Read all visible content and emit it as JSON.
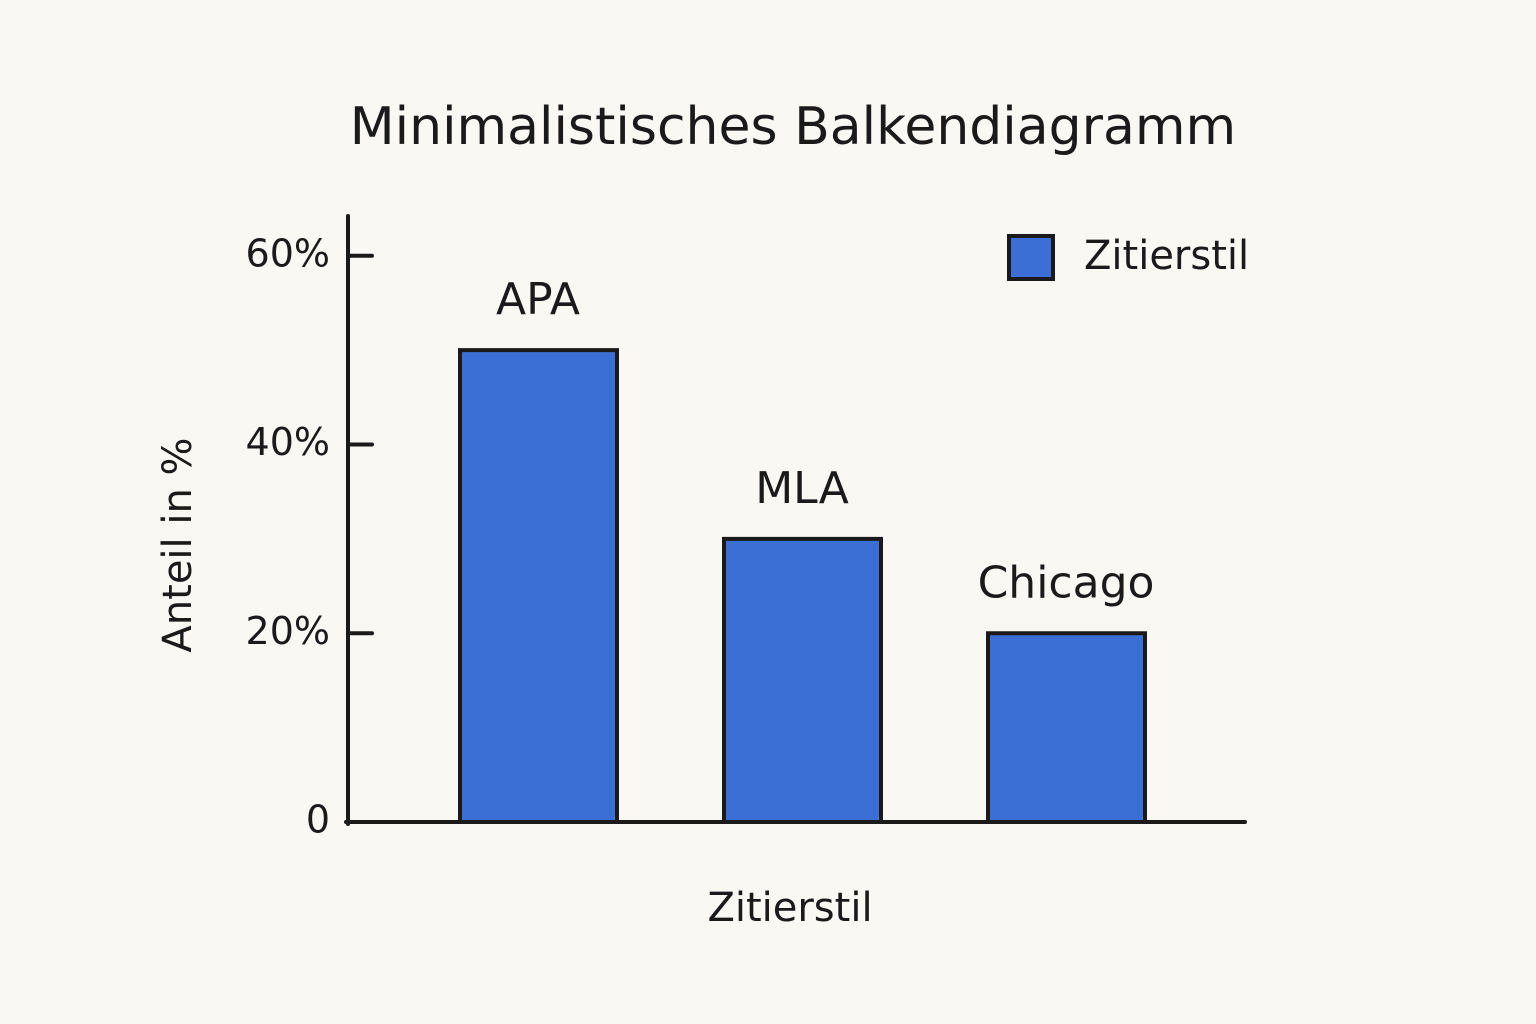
{
  "chart_data": {
    "type": "bar",
    "title": "Minimalistisches Balkendiagramm",
    "categories": [
      "APA",
      "MLA",
      "Chicago"
    ],
    "series": [
      {
        "name": "Zitierstil",
        "color": "#3b6fd6",
        "values": [
          50,
          30,
          20
        ]
      }
    ],
    "x_label": "Zitierstil",
    "y_label": "Anteil in %",
    "ylim": [
      0,
      64
    ],
    "yticks": [
      0,
      {
        "value": 20,
        "label": "20%"
      },
      {
        "value": 40,
        "label": "40%"
      },
      {
        "value": 60,
        "label": "60%"
      }
    ],
    "legend": "top-right",
    "grid": false
  }
}
